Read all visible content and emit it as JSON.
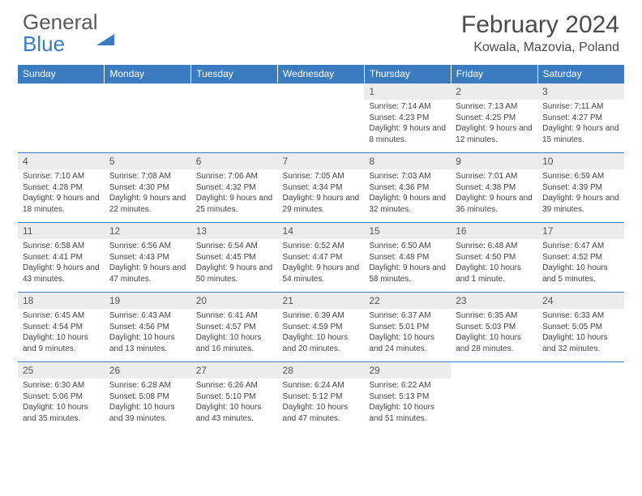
{
  "logo": {
    "text1": "General",
    "text2": "Blue"
  },
  "title": "February 2024",
  "location": "Kowala, Mazovia, Poland",
  "colors": {
    "header_bg": "#3b7bbf",
    "header_text": "#ffffff",
    "daynum_bg": "#ececec",
    "text": "#444444",
    "border": "#3b7bbf"
  },
  "weekdays": [
    "Sunday",
    "Monday",
    "Tuesday",
    "Wednesday",
    "Thursday",
    "Friday",
    "Saturday"
  ],
  "weeks": [
    [
      null,
      null,
      null,
      null,
      {
        "n": "1",
        "sr": "7:14 AM",
        "ss": "4:23 PM",
        "dl": "9 hours and 8 minutes."
      },
      {
        "n": "2",
        "sr": "7:13 AM",
        "ss": "4:25 PM",
        "dl": "9 hours and 12 minutes."
      },
      {
        "n": "3",
        "sr": "7:11 AM",
        "ss": "4:27 PM",
        "dl": "9 hours and 15 minutes."
      }
    ],
    [
      {
        "n": "4",
        "sr": "7:10 AM",
        "ss": "4:28 PM",
        "dl": "9 hours and 18 minutes."
      },
      {
        "n": "5",
        "sr": "7:08 AM",
        "ss": "4:30 PM",
        "dl": "9 hours and 22 minutes."
      },
      {
        "n": "6",
        "sr": "7:06 AM",
        "ss": "4:32 PM",
        "dl": "9 hours and 25 minutes."
      },
      {
        "n": "7",
        "sr": "7:05 AM",
        "ss": "4:34 PM",
        "dl": "9 hours and 29 minutes."
      },
      {
        "n": "8",
        "sr": "7:03 AM",
        "ss": "4:36 PM",
        "dl": "9 hours and 32 minutes."
      },
      {
        "n": "9",
        "sr": "7:01 AM",
        "ss": "4:38 PM",
        "dl": "9 hours and 36 minutes."
      },
      {
        "n": "10",
        "sr": "6:59 AM",
        "ss": "4:39 PM",
        "dl": "9 hours and 39 minutes."
      }
    ],
    [
      {
        "n": "11",
        "sr": "6:58 AM",
        "ss": "4:41 PM",
        "dl": "9 hours and 43 minutes."
      },
      {
        "n": "12",
        "sr": "6:56 AM",
        "ss": "4:43 PM",
        "dl": "9 hours and 47 minutes."
      },
      {
        "n": "13",
        "sr": "6:54 AM",
        "ss": "4:45 PM",
        "dl": "9 hours and 50 minutes."
      },
      {
        "n": "14",
        "sr": "6:52 AM",
        "ss": "4:47 PM",
        "dl": "9 hours and 54 minutes."
      },
      {
        "n": "15",
        "sr": "6:50 AM",
        "ss": "4:48 PM",
        "dl": "9 hours and 58 minutes."
      },
      {
        "n": "16",
        "sr": "6:48 AM",
        "ss": "4:50 PM",
        "dl": "10 hours and 1 minute."
      },
      {
        "n": "17",
        "sr": "6:47 AM",
        "ss": "4:52 PM",
        "dl": "10 hours and 5 minutes."
      }
    ],
    [
      {
        "n": "18",
        "sr": "6:45 AM",
        "ss": "4:54 PM",
        "dl": "10 hours and 9 minutes."
      },
      {
        "n": "19",
        "sr": "6:43 AM",
        "ss": "4:56 PM",
        "dl": "10 hours and 13 minutes."
      },
      {
        "n": "20",
        "sr": "6:41 AM",
        "ss": "4:57 PM",
        "dl": "10 hours and 16 minutes."
      },
      {
        "n": "21",
        "sr": "6:39 AM",
        "ss": "4:59 PM",
        "dl": "10 hours and 20 minutes."
      },
      {
        "n": "22",
        "sr": "6:37 AM",
        "ss": "5:01 PM",
        "dl": "10 hours and 24 minutes."
      },
      {
        "n": "23",
        "sr": "6:35 AM",
        "ss": "5:03 PM",
        "dl": "10 hours and 28 minutes."
      },
      {
        "n": "24",
        "sr": "6:33 AM",
        "ss": "5:05 PM",
        "dl": "10 hours and 32 minutes."
      }
    ],
    [
      {
        "n": "25",
        "sr": "6:30 AM",
        "ss": "5:06 PM",
        "dl": "10 hours and 35 minutes."
      },
      {
        "n": "26",
        "sr": "6:28 AM",
        "ss": "5:08 PM",
        "dl": "10 hours and 39 minutes."
      },
      {
        "n": "27",
        "sr": "6:26 AM",
        "ss": "5:10 PM",
        "dl": "10 hours and 43 minutes."
      },
      {
        "n": "28",
        "sr": "6:24 AM",
        "ss": "5:12 PM",
        "dl": "10 hours and 47 minutes."
      },
      {
        "n": "29",
        "sr": "6:22 AM",
        "ss": "5:13 PM",
        "dl": "10 hours and 51 minutes."
      },
      null,
      null
    ]
  ],
  "labels": {
    "sunrise": "Sunrise:",
    "sunset": "Sunset:",
    "daylight": "Daylight:"
  }
}
